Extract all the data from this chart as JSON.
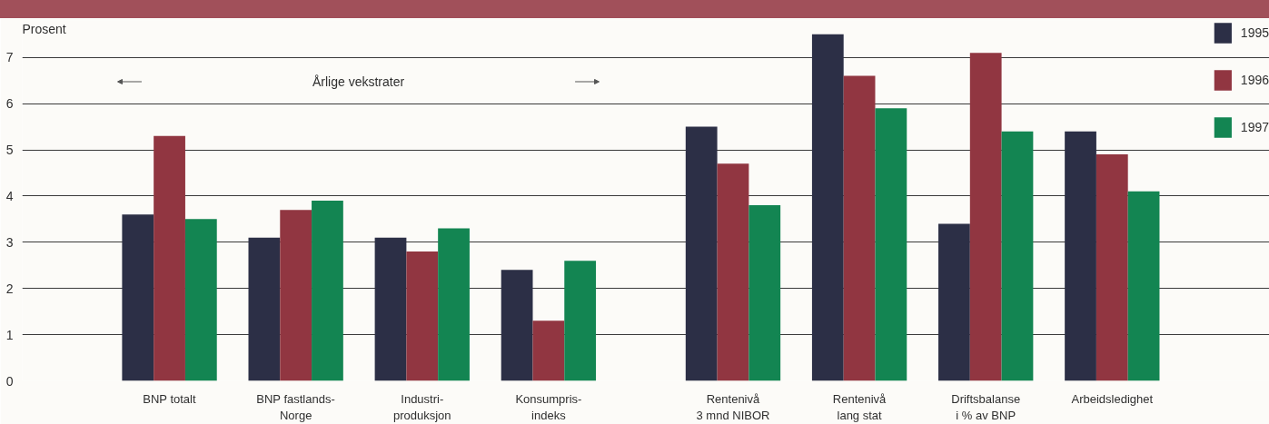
{
  "chart_data": {
    "type": "bar",
    "ylabel": "Prosent",
    "categories": [
      "BNP totalt",
      "BNP fastlands-\nNorge",
      "Industri-\nproduksjon",
      "Konsumpris-\nindeks",
      "Rentenivå\n3 mnd NIBOR",
      "Rentenivå\nlang stat",
      "Driftsbalanse\ni % av BNP",
      "Arbeidsledighet"
    ],
    "series": [
      {
        "name": "1995",
        "color": "#2c2f46",
        "values": [
          3.6,
          3.1,
          3.1,
          2.4,
          5.5,
          7.5,
          3.4,
          5.4
        ]
      },
      {
        "name": "1996",
        "color": "#913641",
        "values": [
          5.3,
          3.7,
          2.8,
          1.3,
          4.7,
          6.6,
          7.1,
          4.9
        ]
      },
      {
        "name": "1997",
        "color": "#138552",
        "values": [
          3.5,
          3.9,
          3.3,
          2.6,
          3.8,
          5.9,
          5.4,
          4.1
        ]
      }
    ],
    "ylim": [
      0,
      7.8
    ],
    "yticks": [
      0,
      1,
      2,
      3,
      4,
      5,
      6,
      7
    ],
    "grid": "y",
    "legend": "top right",
    "annotations": [
      "Årlige vekstrater"
    ]
  }
}
